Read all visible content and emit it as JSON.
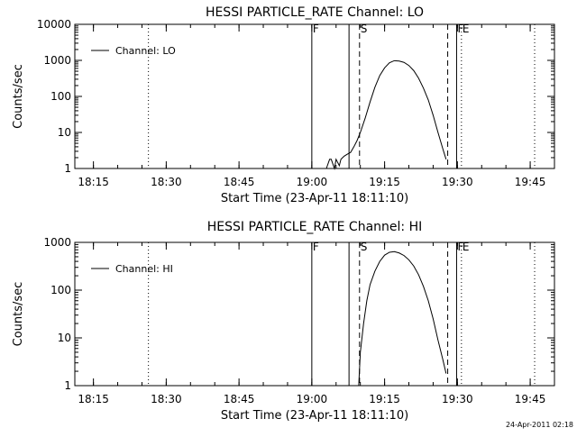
{
  "footer_timestamp": "24-Apr-2011 02:18",
  "chart_data": [
    {
      "type": "line",
      "title": "HESSI PARTICLE_RATE Channel: LO",
      "xlabel": "Start Time (23-Apr-11 18:11:10)",
      "ylabel": "Counts/sec",
      "yscale": "log",
      "ylim": [
        1,
        10000
      ],
      "xlim": [
        "18:11:10",
        "19:50:00"
      ],
      "x_tick_labels": [
        "18:15",
        "18:30",
        "18:45",
        "19:00",
        "19:15",
        "19:30",
        "19:45"
      ],
      "y_tick_labels": [
        "1",
        "10",
        "100",
        "1000",
        "10000"
      ],
      "legend": {
        "position": "top-left",
        "entries": [
          "Channel: LO"
        ]
      },
      "series": [
        {
          "name": "Channel: LO",
          "x": [
            "19:03:00",
            "19:03:40",
            "19:04:00",
            "19:04:40",
            "19:05:00",
            "19:05:40",
            "19:06:00",
            "19:06:40",
            "19:07:20",
            "19:08:00",
            "19:08:40",
            "19:09:20",
            "19:10:00",
            "19:11:00",
            "19:12:00",
            "19:13:00",
            "19:14:00",
            "19:15:00",
            "19:16:00",
            "19:17:00",
            "19:18:00",
            "19:19:00",
            "19:20:00",
            "19:21:00",
            "19:22:00",
            "19:23:00",
            "19:24:00",
            "19:25:00",
            "19:26:00",
            "19:27:00",
            "19:27:40"
          ],
          "y": [
            1,
            1.8,
            1.8,
            1,
            1.8,
            1.2,
            1.8,
            2.2,
            2.5,
            2.8,
            4,
            6,
            10,
            25,
            70,
            180,
            380,
            620,
            860,
            980,
            960,
            880,
            720,
            520,
            320,
            170,
            80,
            30,
            10,
            3.5,
            1.8
          ]
        }
      ],
      "vertical_markers": [
        {
          "time": "18:26:20",
          "style": "dotted"
        },
        {
          "time": "19:00:00",
          "style": "solid",
          "label": "F"
        },
        {
          "time": "19:07:40",
          "style": "solid"
        },
        {
          "time": "19:09:50",
          "style": "dashed",
          "label": "S"
        },
        {
          "time": "19:28:00",
          "style": "dashed"
        },
        {
          "time": "19:29:50",
          "style": "solid",
          "label": "F"
        },
        {
          "time": "19:30:50",
          "style": "dotted",
          "label": "E"
        },
        {
          "time": "19:45:55",
          "style": "dotted"
        }
      ]
    },
    {
      "type": "line",
      "title": "HESSI PARTICLE_RATE Channel: HI",
      "xlabel": "Start Time (23-Apr-11 18:11:10)",
      "ylabel": "Counts/sec",
      "yscale": "log",
      "ylim": [
        1,
        1000
      ],
      "xlim": [
        "18:11:10",
        "19:50:00"
      ],
      "x_tick_labels": [
        "18:15",
        "18:30",
        "18:45",
        "19:00",
        "19:15",
        "19:30",
        "19:45"
      ],
      "y_tick_labels": [
        "1",
        "10",
        "100",
        "1000"
      ],
      "legend": {
        "position": "top-left",
        "entries": [
          "Channel: HI"
        ]
      },
      "series": [
        {
          "name": "Channel: HI",
          "x": [
            "19:09:40",
            "19:10:00",
            "19:10:40",
            "19:11:20",
            "19:12:00",
            "19:13:00",
            "19:14:00",
            "19:15:00",
            "19:16:00",
            "19:17:00",
            "19:18:00",
            "19:19:00",
            "19:20:00",
            "19:21:00",
            "19:22:00",
            "19:23:00",
            "19:24:00",
            "19:25:00",
            "19:26:00",
            "19:27:00",
            "19:27:40"
          ],
          "y": [
            1,
            5,
            20,
            60,
            130,
            250,
            400,
            540,
            620,
            640,
            600,
            530,
            430,
            320,
            210,
            120,
            60,
            25,
            9,
            3.5,
            1.8
          ]
        }
      ],
      "vertical_markers": [
        {
          "time": "18:26:20",
          "style": "dotted"
        },
        {
          "time": "19:00:00",
          "style": "solid",
          "label": "F"
        },
        {
          "time": "19:07:40",
          "style": "solid"
        },
        {
          "time": "19:09:50",
          "style": "dashed",
          "label": "S"
        },
        {
          "time": "19:28:00",
          "style": "dashed"
        },
        {
          "time": "19:29:50",
          "style": "solid",
          "label": "F"
        },
        {
          "time": "19:30:50",
          "style": "dotted",
          "label": "E"
        },
        {
          "time": "19:45:55",
          "style": "dotted"
        }
      ]
    }
  ]
}
